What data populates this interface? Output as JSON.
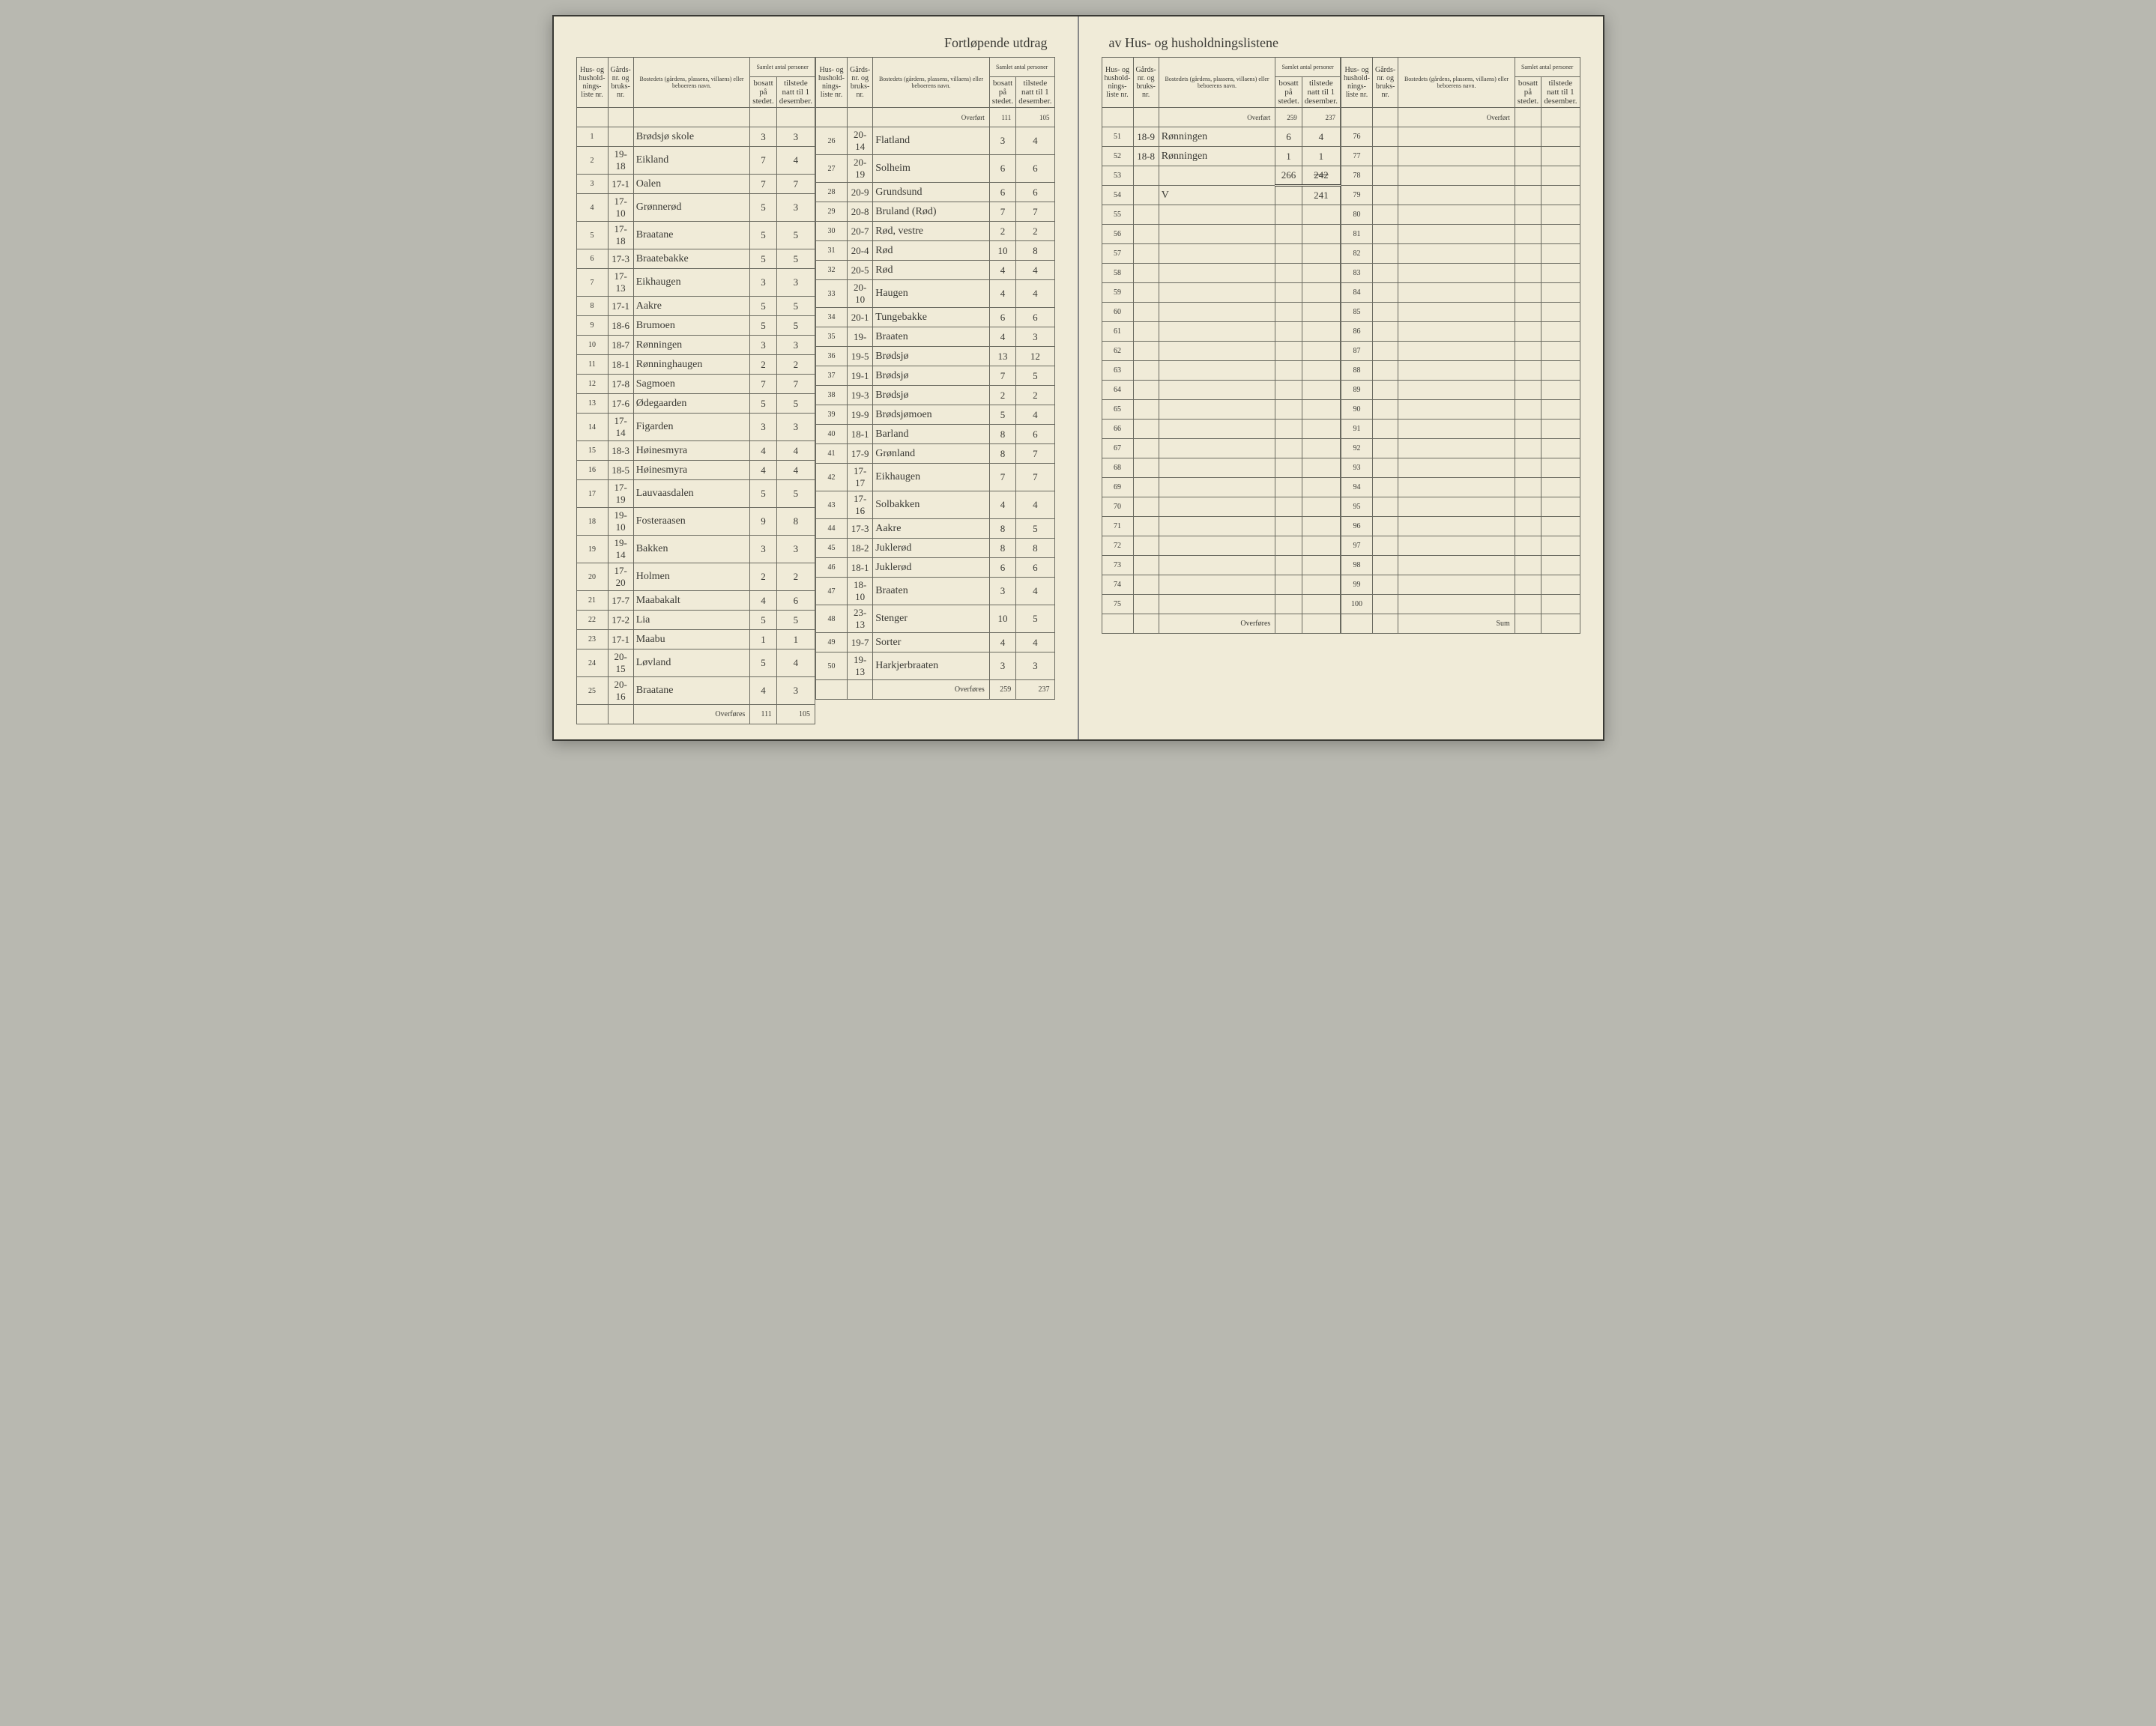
{
  "title_left": "Fortløpende utdrag",
  "title_right": "av Hus- og husholdningslistene",
  "headers": {
    "liste": "Hus- og hushold-nings-liste nr.",
    "gard": "Gårds-nr. og bruks-nr.",
    "name": "Bostedets (gårdens, plassens, villaens) eller beboerens navn.",
    "samlet": "Samlet antal personer",
    "bosatt": "bosatt på stedet.",
    "tilstede": "tilstede natt til 1 desember."
  },
  "labels": {
    "overfort": "Overført",
    "overfores": "Overføres",
    "sum": "Sum"
  },
  "col1": {
    "rows": [
      {
        "n": "1",
        "g": "",
        "name": "Brødsjø skole",
        "b": "3",
        "t": "3"
      },
      {
        "n": "2",
        "g": "19-18",
        "name": "Eikland",
        "b": "7",
        "t": "4"
      },
      {
        "n": "3",
        "g": "17-1",
        "name": "Oalen",
        "b": "7",
        "t": "7"
      },
      {
        "n": "4",
        "g": "17-10",
        "name": "Grønnerød",
        "b": "5",
        "t": "3"
      },
      {
        "n": "5",
        "g": "17-18",
        "name": "Braatane",
        "b": "5",
        "t": "5"
      },
      {
        "n": "6",
        "g": "17-3",
        "name": "Braatebakke",
        "b": "5",
        "t": "5"
      },
      {
        "n": "7",
        "g": "17-13",
        "name": "Eikhaugen",
        "b": "3",
        "t": "3"
      },
      {
        "n": "8",
        "g": "17-1",
        "name": "Aakre",
        "b": "5",
        "t": "5"
      },
      {
        "n": "9",
        "g": "18-6",
        "name": "Brumoen",
        "b": "5",
        "t": "5"
      },
      {
        "n": "10",
        "g": "18-7",
        "name": "Rønningen",
        "b": "3",
        "t": "3"
      },
      {
        "n": "11",
        "g": "18-1",
        "name": "Rønninghaugen",
        "b": "2",
        "t": "2"
      },
      {
        "n": "12",
        "g": "17-8",
        "name": "Sagmoen",
        "b": "7",
        "t": "7"
      },
      {
        "n": "13",
        "g": "17-6",
        "name": "Ødegaarden",
        "b": "5",
        "t": "5"
      },
      {
        "n": "14",
        "g": "17-14",
        "name": "Figarden",
        "b": "3",
        "t": "3"
      },
      {
        "n": "15",
        "g": "18-3",
        "name": "Høinesmyra",
        "b": "4",
        "t": "4"
      },
      {
        "n": "16",
        "g": "18-5",
        "name": "Høinesmyra",
        "b": "4",
        "t": "4"
      },
      {
        "n": "17",
        "g": "17-19",
        "name": "Lauvaasdalen",
        "b": "5",
        "t": "5"
      },
      {
        "n": "18",
        "g": "19-10",
        "name": "Fosteraasen",
        "b": "9",
        "t": "8"
      },
      {
        "n": "19",
        "g": "19-14",
        "name": "Bakken",
        "b": "3",
        "t": "3"
      },
      {
        "n": "20",
        "g": "17-20",
        "name": "Holmen",
        "b": "2",
        "t": "2"
      },
      {
        "n": "21",
        "g": "17-7",
        "name": "Maabakalt",
        "b": "4",
        "t": "6"
      },
      {
        "n": "22",
        "g": "17-2",
        "name": "Lia",
        "b": "5",
        "t": "5"
      },
      {
        "n": "23",
        "g": "17-1",
        "name": "Maabu",
        "b": "1",
        "t": "1"
      },
      {
        "n": "24",
        "g": "20-15",
        "name": "Løvland",
        "b": "5",
        "t": "4"
      },
      {
        "n": "25",
        "g": "20-16",
        "name": "Braatane",
        "b": "4",
        "t": "3"
      }
    ],
    "sum_b": "111",
    "sum_t": "105"
  },
  "col2": {
    "overfort_b": "111",
    "overfort_t": "105",
    "rows": [
      {
        "n": "26",
        "g": "20-14",
        "name": "Flatland",
        "b": "3",
        "t": "4"
      },
      {
        "n": "27",
        "g": "20-19",
        "name": "Solheim",
        "b": "6",
        "t": "6"
      },
      {
        "n": "28",
        "g": "20-9",
        "name": "Grundsund",
        "b": "6",
        "t": "6"
      },
      {
        "n": "29",
        "g": "20-8",
        "name": "Bruland (Rød)",
        "b": "7",
        "t": "7"
      },
      {
        "n": "30",
        "g": "20-7",
        "name": "Rød, vestre",
        "b": "2",
        "t": "2"
      },
      {
        "n": "31",
        "g": "20-4",
        "name": "Rød",
        "b": "10",
        "t": "8"
      },
      {
        "n": "32",
        "g": "20-5",
        "name": "Rød",
        "b": "4",
        "t": "4"
      },
      {
        "n": "33",
        "g": "20-10",
        "name": "Haugen",
        "b": "4",
        "t": "4"
      },
      {
        "n": "34",
        "g": "20-1",
        "name": "Tungebakke",
        "b": "6",
        "t": "6"
      },
      {
        "n": "35",
        "g": "19-",
        "name": "Braaten",
        "b": "4",
        "t": "3"
      },
      {
        "n": "36",
        "g": "19-5",
        "name": "Brødsjø",
        "b": "13",
        "t": "12"
      },
      {
        "n": "37",
        "g": "19-1",
        "name": "Brødsjø",
        "b": "7",
        "t": "5"
      },
      {
        "n": "38",
        "g": "19-3",
        "name": "Brødsjø",
        "b": "2",
        "t": "2"
      },
      {
        "n": "39",
        "g": "19-9",
        "name": "Brødsjømoen",
        "b": "5",
        "t": "4"
      },
      {
        "n": "40",
        "g": "18-1",
        "name": "Barland",
        "b": "8",
        "t": "6"
      },
      {
        "n": "41",
        "g": "17-9",
        "name": "Grønland",
        "b": "8",
        "t": "7"
      },
      {
        "n": "42",
        "g": "17-17",
        "name": "Eikhaugen",
        "b": "7",
        "t": "7"
      },
      {
        "n": "43",
        "g": "17-16",
        "name": "Solbakken",
        "b": "4",
        "t": "4"
      },
      {
        "n": "44",
        "g": "17-3",
        "name": "Aakre",
        "b": "8",
        "t": "5"
      },
      {
        "n": "45",
        "g": "18-2",
        "name": "Juklerød",
        "b": "8",
        "t": "8"
      },
      {
        "n": "46",
        "g": "18-1",
        "name": "Juklerød",
        "b": "6",
        "t": "6"
      },
      {
        "n": "47",
        "g": "18-10",
        "name": "Braaten",
        "b": "3",
        "t": "4"
      },
      {
        "n": "48",
        "g": "23-13",
        "name": "Stenger",
        "b": "10",
        "t": "5"
      },
      {
        "n": "49",
        "g": "19-7",
        "name": "Sorter",
        "b": "4",
        "t": "4"
      },
      {
        "n": "50",
        "g": "19-13",
        "name": "Harkjerbraaten",
        "b": "3",
        "t": "3"
      }
    ],
    "sum_b": "259",
    "sum_t": "237"
  },
  "col3": {
    "overfort_b": "259",
    "overfort_t": "237",
    "rows": [
      {
        "n": "51",
        "g": "18-9",
        "name": "Rønningen",
        "b": "6",
        "t": "4"
      },
      {
        "n": "52",
        "g": "18-8",
        "name": "Rønningen",
        "b": "1",
        "t": "1"
      },
      {
        "n": "53",
        "g": "",
        "name": "",
        "b": "266",
        "t": "242",
        "tot": true,
        "strike_t": true
      },
      {
        "n": "54",
        "g": "",
        "name": "V",
        "b": "",
        "t": "241"
      },
      {
        "n": "55"
      },
      {
        "n": "56"
      },
      {
        "n": "57"
      },
      {
        "n": "58"
      },
      {
        "n": "59"
      },
      {
        "n": "60"
      },
      {
        "n": "61"
      },
      {
        "n": "62"
      },
      {
        "n": "63"
      },
      {
        "n": "64"
      },
      {
        "n": "65"
      },
      {
        "n": "66"
      },
      {
        "n": "67"
      },
      {
        "n": "68"
      },
      {
        "n": "69"
      },
      {
        "n": "70"
      },
      {
        "n": "71"
      },
      {
        "n": "72"
      },
      {
        "n": "73"
      },
      {
        "n": "74"
      },
      {
        "n": "75"
      }
    ]
  },
  "col4": {
    "rows": [
      {
        "n": "76"
      },
      {
        "n": "77"
      },
      {
        "n": "78"
      },
      {
        "n": "79"
      },
      {
        "n": "80"
      },
      {
        "n": "81"
      },
      {
        "n": "82"
      },
      {
        "n": "83"
      },
      {
        "n": "84"
      },
      {
        "n": "85"
      },
      {
        "n": "86"
      },
      {
        "n": "87"
      },
      {
        "n": "88"
      },
      {
        "n": "89"
      },
      {
        "n": "90"
      },
      {
        "n": "91"
      },
      {
        "n": "92"
      },
      {
        "n": "93"
      },
      {
        "n": "94"
      },
      {
        "n": "95"
      },
      {
        "n": "96"
      },
      {
        "n": "97"
      },
      {
        "n": "98"
      },
      {
        "n": "99"
      },
      {
        "n": "100"
      }
    ]
  }
}
